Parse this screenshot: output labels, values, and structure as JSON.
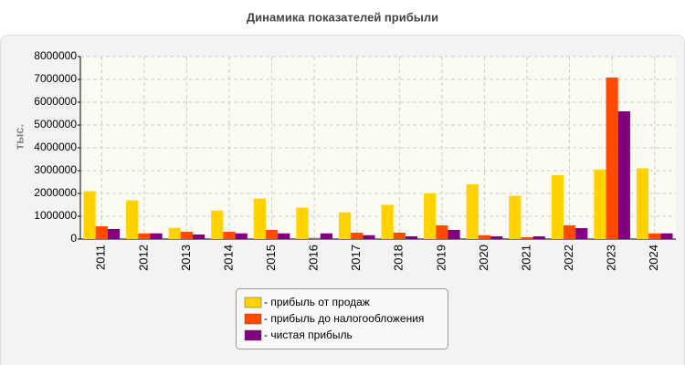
{
  "chart_data": {
    "type": "bar",
    "title": "Динамика показателей прибыли",
    "y_label": "тыс.",
    "categories": [
      "2011",
      "2012",
      "2013",
      "2014",
      "2015",
      "2016",
      "2017",
      "2018",
      "2019",
      "2020",
      "2021",
      "2022",
      "2023",
      "2024"
    ],
    "series": [
      {
        "name": "- прибыль от продаж",
        "color": "#ffd200",
        "values": [
          2100000,
          1700000,
          490000,
          1250000,
          1780000,
          1380000,
          1170000,
          1500000,
          2000000,
          2400000,
          1900000,
          2800000,
          3050000,
          3100000
        ]
      },
      {
        "name": "- прибыль до налогообложения",
        "color": "#ff4a00",
        "values": [
          560000,
          250000,
          320000,
          320000,
          400000,
          50000,
          280000,
          280000,
          600000,
          170000,
          80000,
          600000,
          7080000,
          250000
        ]
      },
      {
        "name": "- чистая прибыль",
        "color": "#800080",
        "values": [
          440000,
          250000,
          200000,
          250000,
          250000,
          250000,
          170000,
          120000,
          400000,
          120000,
          120000,
          480000,
          5600000,
          250000
        ]
      }
    ],
    "ylim": [
      0,
      8000000
    ],
    "yticks": [
      0,
      1000000,
      2000000,
      3000000,
      4000000,
      5000000,
      6000000,
      7000000,
      8000000
    ],
    "grid": true,
    "legend": "bottom"
  }
}
